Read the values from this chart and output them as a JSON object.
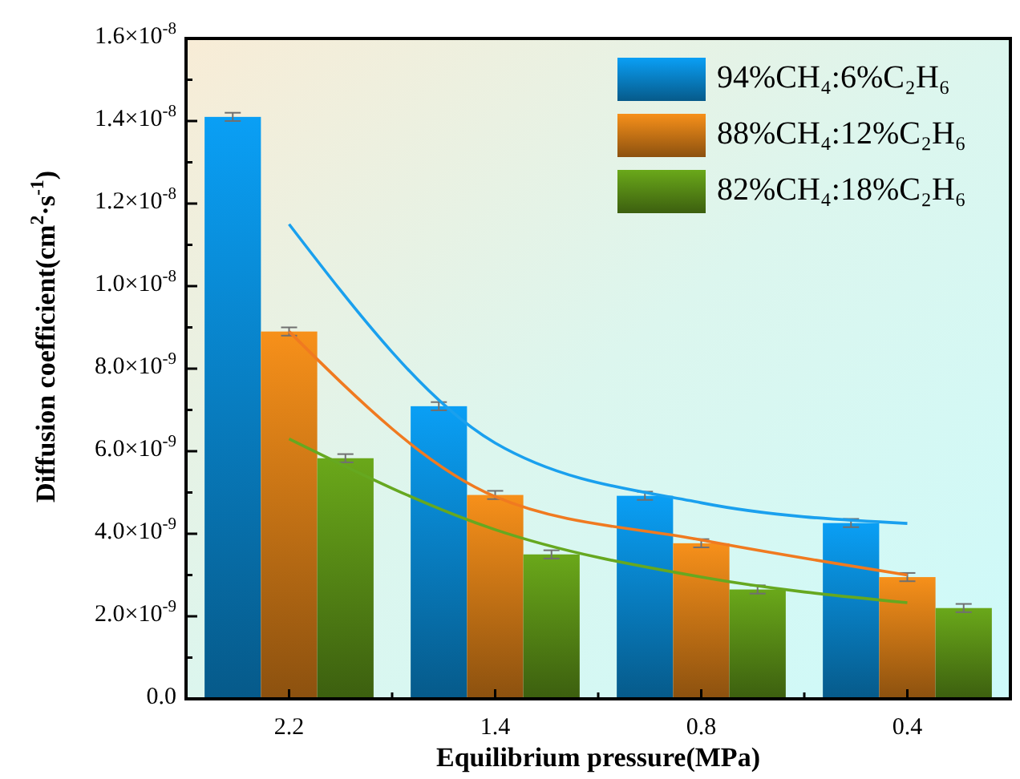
{
  "chart_data": {
    "type": "bar",
    "xlabel": "Equilibrium pressure(MPa)",
    "ylabel": "Diffusion coefficient(cm$^{2}$·s$^{-1}$)",
    "categories": [
      "2.2",
      "1.4",
      "0.8",
      "0.4"
    ],
    "series": [
      {
        "name": "94%CH₄:6%C₂H₆",
        "color": "#0a9ff5",
        "values": [
          1.41e-08,
          7.09e-09,
          4.92e-09,
          4.26e-09
        ],
        "errors": [
          1e-10,
          1e-10,
          1e-10,
          1e-10
        ]
      },
      {
        "name": "88%CH₄:12%C₂H₆",
        "color": "#f7901a",
        "values": [
          8.9e-09,
          4.94e-09,
          3.77e-09,
          2.95e-09
        ],
        "errors": [
          1e-10,
          1e-10,
          1e-10,
          1e-10
        ]
      },
      {
        "name": "82%CH₄:18%C₂H₆",
        "color": "#6aa81a",
        "values": [
          5.83e-09,
          3.5e-09,
          2.65e-09,
          2.2e-09
        ],
        "errors": [
          1e-10,
          1e-10,
          1e-10,
          1e-10
        ]
      },
      {
        "type": "line",
        "color": "#1aa0ee",
        "x": [
          "2.2",
          "1.4",
          "0.8",
          "0.4"
        ],
        "values": [
          1.15e-08,
          6.2e-09,
          4.75e-09,
          4.25e-09
        ]
      },
      {
        "type": "line",
        "color": "#f07a20",
        "x": [
          "2.2",
          "1.4",
          "0.8",
          "0.4"
        ],
        "values": [
          8.9e-09,
          4.9e-09,
          3.85e-09,
          3e-09
        ]
      },
      {
        "type": "line",
        "color": "#66a820",
        "x": [
          "2.2",
          "1.4",
          "0.8",
          "0.4"
        ],
        "values": [
          6.3e-09,
          4.1e-09,
          2.95e-09,
          2.33e-09
        ]
      }
    ],
    "ylim": [
      0,
      1.6e-08
    ],
    "yticks": [
      {
        "value": 0,
        "label": "0.0"
      },
      {
        "value": 1e-09,
        "label": null
      },
      {
        "value": 2e-09,
        "label": "2.0×10$^{-9}$"
      },
      {
        "value": 3e-09,
        "label": null
      },
      {
        "value": 4e-09,
        "label": "4.0×10$^{-9}$"
      },
      {
        "value": 5e-09,
        "label": null
      },
      {
        "value": 6e-09,
        "label": "6.0×10$^{-9}$"
      },
      {
        "value": 7e-09,
        "label": null
      },
      {
        "value": 8e-09,
        "label": "8.0×10$^{-9}$"
      },
      {
        "value": 9e-09,
        "label": null
      },
      {
        "value": 1e-08,
        "label": "1.0×10$^{-8}$"
      },
      {
        "value": 1.1e-08,
        "label": null
      },
      {
        "value": 1.2e-08,
        "label": "1.2×10$^{-8}$"
      },
      {
        "value": 1.3e-08,
        "label": null
      },
      {
        "value": 1.4e-08,
        "label": "1.4×10$^{-8}$"
      },
      {
        "value": 1.5e-08,
        "label": null
      },
      {
        "value": 1.6e-08,
        "label": "1.6×10$^{-8}$"
      }
    ],
    "legend": "top right",
    "grid": false
  }
}
